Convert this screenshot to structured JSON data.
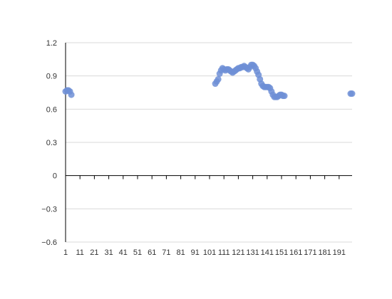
{
  "chart_data": {
    "type": "scatter",
    "title": "",
    "xlabel": "",
    "ylabel": "",
    "xlim": [
      1,
      200
    ],
    "ylim": [
      -0.6,
      1.2
    ],
    "x_ticks": [
      1,
      11,
      21,
      31,
      41,
      51,
      61,
      71,
      81,
      91,
      101,
      111,
      121,
      131,
      141,
      151,
      161,
      171,
      181,
      191
    ],
    "y_ticks": [
      -0.6,
      -0.3,
      0,
      0.3,
      0.6,
      0.9,
      1.2
    ],
    "y_tick_labels": [
      "−0.6",
      "−0.3",
      "0",
      "0.3",
      "0.6",
      "0.9",
      "1.2"
    ],
    "grid": "horizontal",
    "color": "#6f8fd6",
    "series": [
      {
        "x": [
          1,
          2,
          3,
          4,
          5,
          105,
          106,
          107,
          108,
          109,
          110,
          111,
          112,
          113,
          114,
          115,
          116,
          117,
          118,
          119,
          120,
          121,
          122,
          123,
          124,
          125,
          126,
          127,
          128,
          129,
          130,
          131,
          132,
          133,
          134,
          135,
          136,
          137,
          138,
          139,
          140,
          141,
          142,
          143,
          144,
          145,
          146,
          147,
          148,
          149,
          150,
          151,
          152,
          153,
          199,
          200
        ],
        "y": [
          0.76,
          0.77,
          0.77,
          0.76,
          0.73,
          0.83,
          0.85,
          0.87,
          0.92,
          0.95,
          0.97,
          0.96,
          0.95,
          0.96,
          0.96,
          0.95,
          0.94,
          0.93,
          0.94,
          0.95,
          0.96,
          0.97,
          0.97,
          0.98,
          0.98,
          0.99,
          0.98,
          0.97,
          0.96,
          0.98,
          1.0,
          1.0,
          0.99,
          0.97,
          0.94,
          0.91,
          0.87,
          0.83,
          0.81,
          0.8,
          0.8,
          0.8,
          0.8,
          0.79,
          0.76,
          0.73,
          0.71,
          0.71,
          0.71,
          0.72,
          0.73,
          0.73,
          0.72,
          0.72,
          0.74,
          0.74
        ]
      }
    ]
  }
}
